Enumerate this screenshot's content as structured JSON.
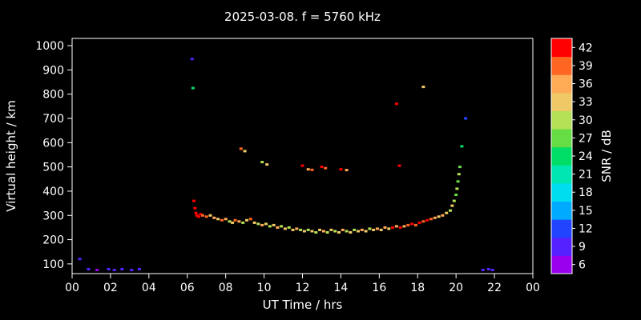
{
  "chart_data": {
    "type": "scatter",
    "title": "2025-03-08. f = 5760 kHz",
    "xlabel": "UT Time / hrs",
    "ylabel": "Virtual height / km",
    "colorbar_label": "SNR / dB",
    "background": "#000000",
    "text_color": "#ffffff",
    "xlim": [
      0,
      24
    ],
    "ylim": [
      60,
      1030
    ],
    "x_ticks": [
      0,
      2,
      4,
      6,
      8,
      10,
      12,
      14,
      16,
      18,
      20,
      22,
      24
    ],
    "x_tick_labels": [
      "00",
      "02",
      "04",
      "06",
      "08",
      "10",
      "12",
      "14",
      "16",
      "18",
      "20",
      "22",
      "00"
    ],
    "y_ticks": [
      100,
      200,
      300,
      400,
      500,
      600,
      700,
      800,
      900,
      1000
    ],
    "colorbar": {
      "range": [
        4.5,
        43.5
      ],
      "ticks": [
        6,
        9,
        12,
        15,
        18,
        21,
        24,
        27,
        30,
        33,
        36,
        39,
        42
      ],
      "colors": [
        "#9900ee",
        "#5522ff",
        "#2244ff",
        "#00aaff",
        "#00ddee",
        "#00e6b3",
        "#00dd66",
        "#66dd44",
        "#b3e055",
        "#eec966",
        "#ffaa55",
        "#ff6622",
        "#ff0000"
      ]
    },
    "points": [
      [
        0.4,
        120,
        10
      ],
      [
        0.85,
        78,
        8
      ],
      [
        1.3,
        75,
        7
      ],
      [
        1.9,
        78,
        8
      ],
      [
        2.2,
        75,
        8
      ],
      [
        2.6,
        78,
        9
      ],
      [
        3.1,
        75,
        8
      ],
      [
        3.5,
        78,
        8
      ],
      [
        6.25,
        945,
        10
      ],
      [
        6.3,
        825,
        24
      ],
      [
        6.35,
        360,
        42
      ],
      [
        6.4,
        330,
        41
      ],
      [
        6.45,
        310,
        42
      ],
      [
        6.5,
        300,
        41
      ],
      [
        6.6,
        295,
        42
      ],
      [
        6.7,
        305,
        41
      ],
      [
        6.8,
        300,
        38
      ],
      [
        7.0,
        295,
        38
      ],
      [
        7.2,
        300,
        33
      ],
      [
        7.4,
        290,
        36
      ],
      [
        7.6,
        285,
        33
      ],
      [
        7.8,
        280,
        39
      ],
      [
        8.0,
        285,
        36
      ],
      [
        8.2,
        275,
        30
      ],
      [
        8.35,
        270,
        33
      ],
      [
        8.5,
        280,
        39
      ],
      [
        8.7,
        275,
        36
      ],
      [
        8.9,
        270,
        30
      ],
      [
        8.8,
        575,
        38
      ],
      [
        9.0,
        565,
        33
      ],
      [
        9.1,
        280,
        33
      ],
      [
        9.3,
        285,
        39
      ],
      [
        9.5,
        270,
        33
      ],
      [
        9.7,
        265,
        30
      ],
      [
        9.9,
        260,
        36
      ],
      [
        9.9,
        520,
        30
      ],
      [
        10.15,
        510,
        33
      ],
      [
        10.1,
        265,
        33
      ],
      [
        10.3,
        255,
        30
      ],
      [
        10.5,
        260,
        33
      ],
      [
        10.7,
        250,
        36
      ],
      [
        10.9,
        255,
        30
      ],
      [
        11.1,
        245,
        33
      ],
      [
        11.3,
        250,
        30
      ],
      [
        11.5,
        240,
        33
      ],
      [
        11.7,
        245,
        36
      ],
      [
        11.9,
        240,
        30
      ],
      [
        12.0,
        505,
        41
      ],
      [
        12.3,
        490,
        36
      ],
      [
        12.5,
        488,
        38
      ],
      [
        12.1,
        235,
        33
      ],
      [
        12.3,
        240,
        30
      ],
      [
        12.5,
        235,
        33
      ],
      [
        12.7,
        230,
        30
      ],
      [
        12.9,
        240,
        33
      ],
      [
        13.0,
        500,
        41
      ],
      [
        13.2,
        495,
        39
      ],
      [
        13.1,
        235,
        36
      ],
      [
        13.3,
        230,
        30
      ],
      [
        13.5,
        240,
        33
      ],
      [
        13.7,
        235,
        30
      ],
      [
        13.9,
        230,
        33
      ],
      [
        14.0,
        490,
        41
      ],
      [
        14.3,
        487,
        36
      ],
      [
        14.1,
        240,
        36
      ],
      [
        14.3,
        235,
        30
      ],
      [
        14.5,
        230,
        33
      ],
      [
        14.7,
        240,
        30
      ],
      [
        14.9,
        235,
        33
      ],
      [
        15.1,
        240,
        36
      ],
      [
        15.3,
        235,
        33
      ],
      [
        15.5,
        245,
        30
      ],
      [
        15.7,
        240,
        33
      ],
      [
        15.9,
        245,
        36
      ],
      [
        16.1,
        240,
        33
      ],
      [
        16.3,
        250,
        36
      ],
      [
        16.5,
        245,
        33
      ],
      [
        16.7,
        250,
        41
      ],
      [
        16.9,
        760,
        41
      ],
      [
        17.05,
        505,
        41
      ],
      [
        16.9,
        255,
        36
      ],
      [
        17.1,
        250,
        41
      ],
      [
        17.3,
        255,
        36
      ],
      [
        17.5,
        260,
        39
      ],
      [
        17.7,
        265,
        41
      ],
      [
        17.9,
        260,
        39
      ],
      [
        18.1,
        270,
        41
      ],
      [
        18.3,
        830,
        33
      ],
      [
        18.3,
        275,
        39
      ],
      [
        18.5,
        280,
        41
      ],
      [
        18.7,
        285,
        39
      ],
      [
        18.9,
        290,
        36
      ],
      [
        19.1,
        295,
        33
      ],
      [
        19.3,
        300,
        36
      ],
      [
        19.5,
        310,
        33
      ],
      [
        19.7,
        320,
        30
      ],
      [
        19.8,
        340,
        33
      ],
      [
        19.9,
        360,
        30
      ],
      [
        20.0,
        385,
        27
      ],
      [
        20.05,
        410,
        30
      ],
      [
        20.1,
        440,
        27
      ],
      [
        20.15,
        470,
        30
      ],
      [
        20.2,
        500,
        27
      ],
      [
        20.3,
        585,
        24
      ],
      [
        20.5,
        700,
        12
      ],
      [
        21.4,
        75,
        9
      ],
      [
        21.7,
        78,
        8
      ],
      [
        21.9,
        75,
        8
      ]
    ]
  }
}
